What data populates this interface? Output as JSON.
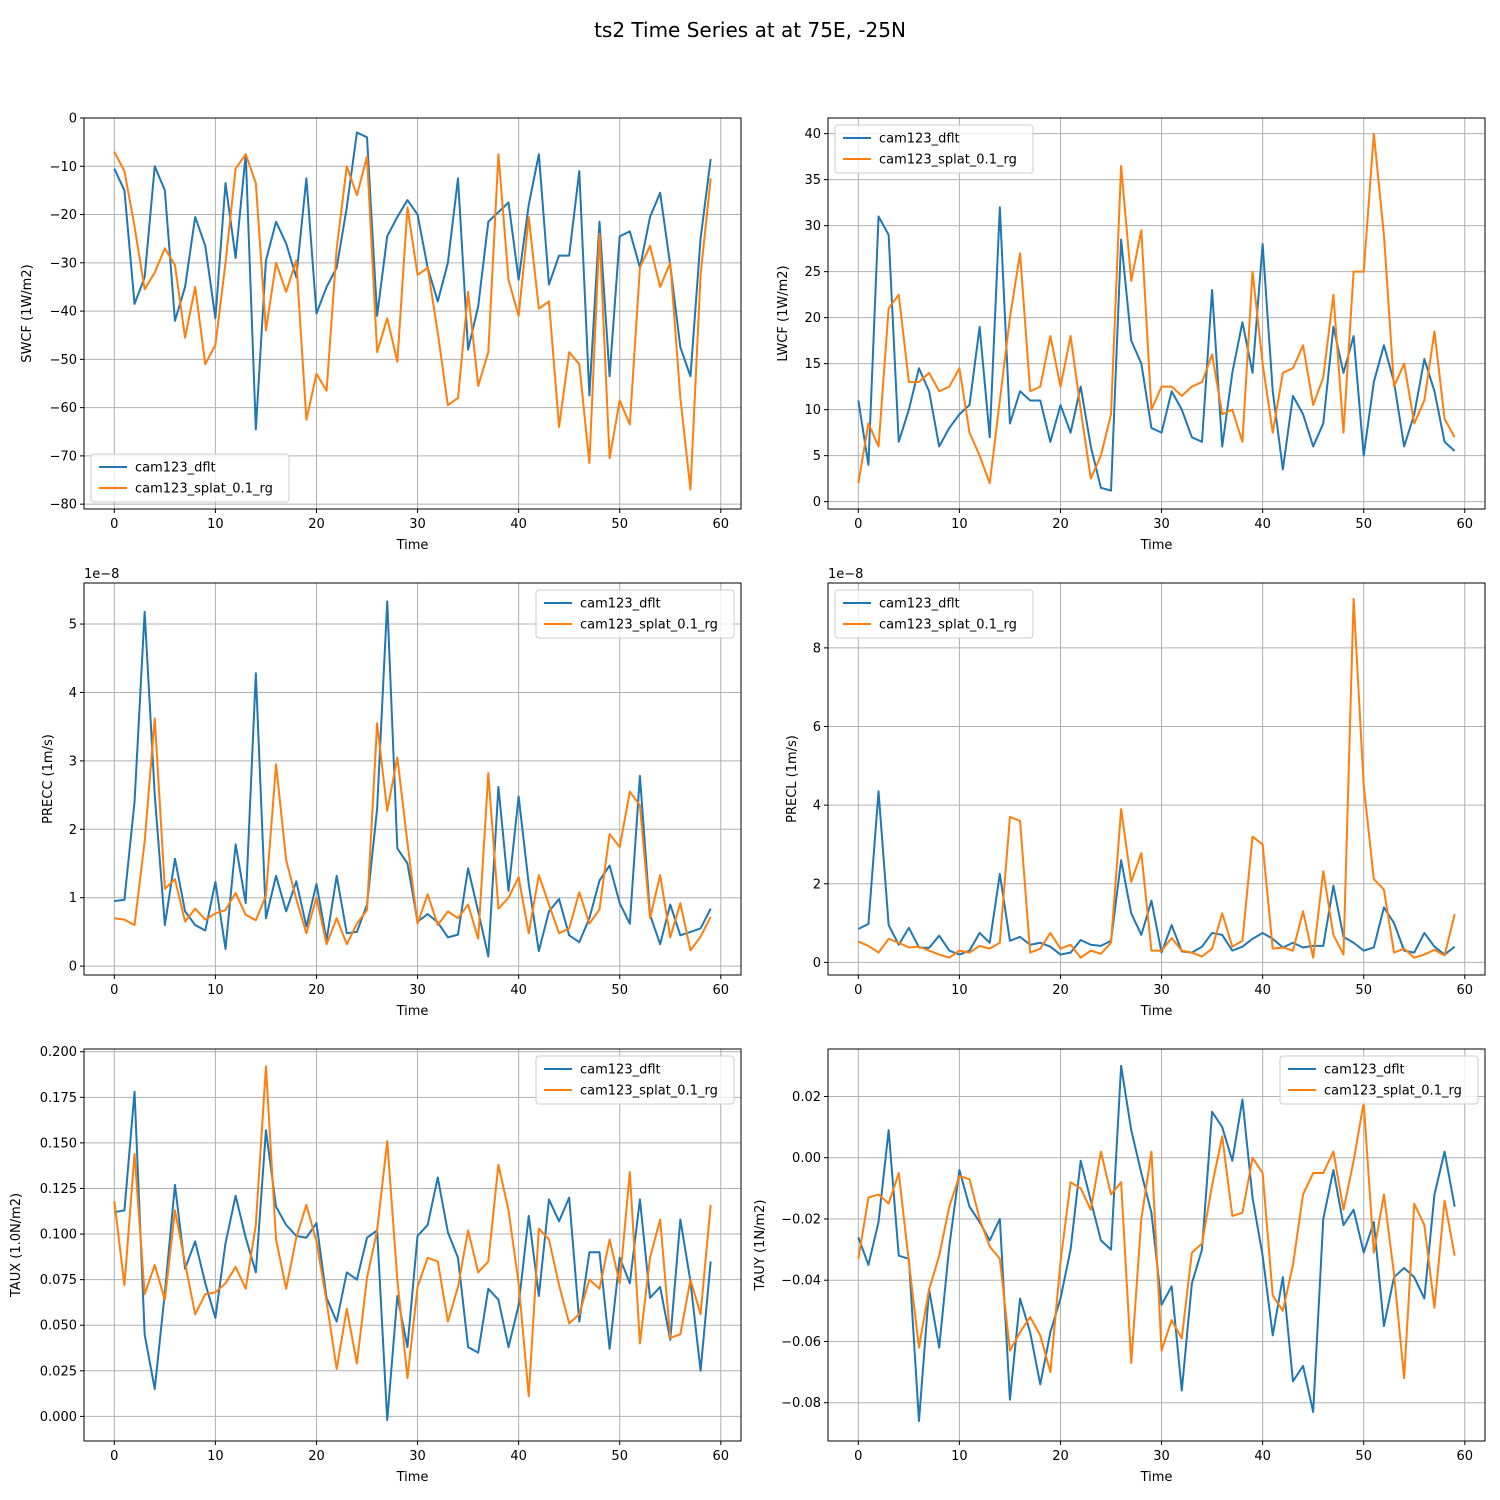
{
  "figure": {
    "title": "ts2 Time Series at at 75E, -25N"
  },
  "colors": {
    "cam123_dflt": "#1f77b4",
    "cam123_splat_0.1_rg": "#ff7f0e"
  },
  "chart_data": [
    {
      "type": "line",
      "xlabel": "Time",
      "ylabel": "SWCF (1W/m2)",
      "offset_label": "",
      "xlim": [
        -3,
        62
      ],
      "ylim": [
        -81,
        0
      ],
      "xticks": [
        0,
        10,
        20,
        30,
        40,
        50,
        60
      ],
      "yticks": [
        0,
        -10,
        -20,
        -30,
        -40,
        -50,
        -60,
        -70,
        -80
      ],
      "ytick_labels": [
        "0",
        "−10",
        "−20",
        "−30",
        "−40",
        "−50",
        "−60",
        "−70",
        "−80"
      ],
      "grid": true,
      "legend_loc": "lower-left",
      "series": [
        {
          "name": "cam123_dflt",
          "values": [
            -10.5,
            -15,
            -38.5,
            -33,
            -10,
            -15,
            -42,
            -35,
            -20.5,
            -26.5,
            -41.5,
            -13.5,
            -29,
            -7.5,
            -64.5,
            -29.5,
            -21.5,
            -26,
            -33,
            -12.5,
            -40.5,
            -35,
            -31,
            -18.5,
            -3,
            -4,
            -41,
            -24.5,
            -20.5,
            -17,
            -20,
            -31,
            -38,
            -30,
            -12.5,
            -48,
            -39,
            -21.5,
            -19.5,
            -17.5,
            -33.5,
            -18,
            -7.5,
            -34.5,
            -28.5,
            -28.5,
            -11,
            -57.5,
            -21.5,
            -53.5,
            -24.5,
            -23.5,
            -31,
            -20.5,
            -15.5,
            -30.5,
            -47.5,
            -53.5,
            -25,
            -8.5
          ]
        },
        {
          "name": "cam123_splat_0.1_rg",
          "values": [
            -7,
            -11,
            -22.5,
            -35.5,
            -32,
            -27,
            -30.5,
            -45.5,
            -35,
            -51,
            -47,
            -30,
            -10.5,
            -7.5,
            -13.5,
            -44,
            -30,
            -36,
            -29.5,
            -62.5,
            -53,
            -56.5,
            -27,
            -10,
            -16,
            -8,
            -48.5,
            -41.5,
            -50.5,
            -18.5,
            -32.5,
            -31,
            -44.5,
            -59.5,
            -58,
            -36,
            -55.5,
            -48.5,
            -7.5,
            -33.5,
            -41,
            -20.5,
            -39.5,
            -38,
            -64,
            -48.5,
            -51,
            -71.5,
            -24,
            -70.5,
            -58.5,
            -63.5,
            -31,
            -26.5,
            -35,
            -30,
            -58,
            -77,
            -32.5,
            -12.5
          ]
        }
      ]
    },
    {
      "type": "line",
      "xlabel": "Time",
      "ylabel": "LWCF (1W/m2)",
      "offset_label": "",
      "xlim": [
        -3,
        62
      ],
      "ylim": [
        -0.8,
        41.7
      ],
      "xticks": [
        0,
        10,
        20,
        30,
        40,
        50,
        60
      ],
      "yticks": [
        0,
        5,
        10,
        15,
        20,
        25,
        30,
        35,
        40
      ],
      "ytick_labels": [
        "0",
        "5",
        "10",
        "15",
        "20",
        "25",
        "30",
        "35",
        "40"
      ],
      "grid": true,
      "legend_loc": "upper-left",
      "series": [
        {
          "name": "cam123_dflt",
          "values": [
            11,
            4,
            31,
            29,
            6.5,
            10,
            14.5,
            12,
            6,
            8,
            9.5,
            10.5,
            19,
            7,
            32,
            8.5,
            12,
            11,
            11,
            6.5,
            10.5,
            7.5,
            12.5,
            6,
            1.5,
            1.2,
            28.5,
            17.5,
            15,
            8,
            7.5,
            12,
            10,
            7,
            6.5,
            23,
            6,
            14,
            19.5,
            14,
            28,
            12,
            3.5,
            11.5,
            9.5,
            6,
            8.5,
            19,
            14,
            18,
            5,
            13,
            17,
            13,
            6,
            9.5,
            15.5,
            12,
            6.5,
            5.5
          ]
        },
        {
          "name": "cam123_splat_0.1_rg",
          "values": [
            2,
            8.5,
            6,
            21,
            22.5,
            13,
            13,
            14,
            12,
            12.5,
            14.5,
            7.5,
            5,
            2,
            11,
            20,
            27,
            12,
            12.5,
            18,
            12.5,
            18,
            10,
            2.5,
            5,
            9.5,
            36.5,
            24,
            29.5,
            10,
            12.5,
            12.5,
            11.5,
            12.5,
            13,
            16,
            9.5,
            10,
            6.5,
            25,
            15,
            7.5,
            14,
            14.5,
            17,
            10.5,
            13.5,
            22.5,
            7.5,
            25,
            25,
            40,
            29,
            12.5,
            15,
            8.5,
            11,
            18.5,
            9,
            7
          ]
        }
      ]
    },
    {
      "type": "line",
      "xlabel": "Time",
      "ylabel": "PRECC (1m/s)",
      "offset_label": "1e−8",
      "xlim": [
        -3,
        62
      ],
      "ylim": [
        -0.13,
        5.6
      ],
      "xticks": [
        0,
        10,
        20,
        30,
        40,
        50,
        60
      ],
      "yticks": [
        0,
        1,
        2,
        3,
        4,
        5
      ],
      "ytick_labels": [
        "0",
        "1",
        "2",
        "3",
        "4",
        "5"
      ],
      "grid": true,
      "legend_loc": "upper-right",
      "series": [
        {
          "name": "cam123_dflt",
          "values": [
            0.95,
            0.97,
            2.4,
            5.18,
            2.5,
            0.6,
            1.57,
            0.8,
            0.6,
            0.52,
            1.23,
            0.25,
            1.78,
            0.92,
            4.28,
            0.7,
            1.32,
            0.8,
            1.24,
            0.58,
            1.2,
            0.38,
            1.32,
            0.48,
            0.5,
            0.9,
            2.3,
            5.33,
            1.72,
            1.5,
            0.65,
            0.76,
            0.64,
            0.42,
            0.46,
            1.43,
            0.8,
            0.14,
            2.62,
            1.1,
            2.48,
            1.2,
            0.22,
            0.8,
            0.98,
            0.45,
            0.35,
            0.7,
            1.25,
            1.47,
            0.92,
            0.62,
            2.78,
            0.75,
            0.32,
            0.9,
            0.45,
            0.5,
            0.55,
            0.84
          ]
        },
        {
          "name": "cam123_splat_0.1_rg",
          "values": [
            0.7,
            0.68,
            0.6,
            1.82,
            3.62,
            1.13,
            1.27,
            0.65,
            0.84,
            0.68,
            0.77,
            0.82,
            1.07,
            0.75,
            0.67,
            1.03,
            2.95,
            1.55,
            0.98,
            0.48,
            1.0,
            0.32,
            0.7,
            0.32,
            0.62,
            0.82,
            3.55,
            2.27,
            3.05,
            1.8,
            0.62,
            1.05,
            0.6,
            0.8,
            0.7,
            0.9,
            0.4,
            2.82,
            0.84,
            1.0,
            1.3,
            0.48,
            1.33,
            0.9,
            0.48,
            0.55,
            1.08,
            0.62,
            0.83,
            1.93,
            1.74,
            2.55,
            2.35,
            0.7,
            1.33,
            0.42,
            0.92,
            0.23,
            0.43,
            0.72
          ]
        }
      ]
    },
    {
      "type": "line",
      "xlabel": "Time",
      "ylabel": "PRECL (1m/s)",
      "offset_label": "1e−8",
      "xlim": [
        -3,
        62
      ],
      "ylim": [
        -0.32,
        9.65
      ],
      "xticks": [
        0,
        10,
        20,
        30,
        40,
        50,
        60
      ],
      "yticks": [
        0,
        2,
        4,
        6,
        8
      ],
      "ytick_labels": [
        "0",
        "2",
        "4",
        "6",
        "8"
      ],
      "grid": true,
      "legend_loc": "upper-left",
      "series": [
        {
          "name": "cam123_dflt",
          "values": [
            0.85,
            0.98,
            4.35,
            0.95,
            0.45,
            0.88,
            0.38,
            0.37,
            0.68,
            0.3,
            0.2,
            0.3,
            0.75,
            0.5,
            2.25,
            0.55,
            0.65,
            0.45,
            0.5,
            0.4,
            0.2,
            0.25,
            0.57,
            0.45,
            0.42,
            0.55,
            2.6,
            1.25,
            0.7,
            1.57,
            0.25,
            0.95,
            0.28,
            0.25,
            0.4,
            0.75,
            0.7,
            0.3,
            0.4,
            0.6,
            0.75,
            0.6,
            0.38,
            0.5,
            0.38,
            0.42,
            0.42,
            1.95,
            0.65,
            0.5,
            0.3,
            0.38,
            1.4,
            1.0,
            0.3,
            0.25,
            0.75,
            0.4,
            0.2,
            0.4
          ]
        },
        {
          "name": "cam123_splat_0.1_rg",
          "values": [
            0.53,
            0.42,
            0.25,
            0.6,
            0.5,
            0.38,
            0.4,
            0.3,
            0.2,
            0.12,
            0.3,
            0.25,
            0.42,
            0.35,
            0.5,
            3.7,
            3.6,
            0.25,
            0.35,
            0.75,
            0.35,
            0.45,
            0.12,
            0.3,
            0.22,
            0.5,
            3.9,
            2.05,
            2.78,
            0.3,
            0.3,
            0.62,
            0.3,
            0.25,
            0.15,
            0.35,
            1.25,
            0.4,
            0.55,
            3.2,
            3.0,
            0.35,
            0.38,
            0.3,
            1.3,
            0.12,
            2.32,
            0.7,
            0.2,
            9.25,
            4.5,
            2.12,
            1.85,
            0.25,
            0.35,
            0.12,
            0.2,
            0.32,
            0.18,
            1.23
          ]
        }
      ]
    },
    {
      "type": "line",
      "xlabel": "Time",
      "ylabel": "TAUX (1.0N/m2)",
      "offset_label": "",
      "xlim": [
        -3,
        62
      ],
      "ylim": [
        -0.0135,
        0.2015
      ],
      "xticks": [
        0,
        10,
        20,
        30,
        40,
        50,
        60
      ],
      "yticks": [
        0.0,
        0.025,
        0.05,
        0.075,
        0.1,
        0.125,
        0.15,
        0.175,
        0.2
      ],
      "ytick_labels": [
        "0.000",
        "0.025",
        "0.050",
        "0.075",
        "0.100",
        "0.125",
        "0.150",
        "0.175",
        "0.200"
      ],
      "grid": true,
      "legend_loc": "upper-right",
      "series": [
        {
          "name": "cam123_dflt",
          "values": [
            0.112,
            0.113,
            0.178,
            0.045,
            0.015,
            0.068,
            0.127,
            0.081,
            0.096,
            0.073,
            0.054,
            0.095,
            0.121,
            0.098,
            0.079,
            0.157,
            0.115,
            0.105,
            0.099,
            0.098,
            0.106,
            0.065,
            0.052,
            0.079,
            0.075,
            0.098,
            0.102,
            -0.002,
            0.066,
            0.038,
            0.099,
            0.105,
            0.131,
            0.101,
            0.087,
            0.038,
            0.035,
            0.07,
            0.064,
            0.038,
            0.061,
            0.11,
            0.066,
            0.119,
            0.107,
            0.12,
            0.052,
            0.09,
            0.09,
            0.037,
            0.087,
            0.073,
            0.119,
            0.065,
            0.071,
            0.042,
            0.108,
            0.074,
            0.025,
            0.085
          ]
        },
        {
          "name": "cam123_splat_0.1_rg",
          "values": [
            0.118,
            0.072,
            0.144,
            0.067,
            0.083,
            0.064,
            0.113,
            0.084,
            0.056,
            0.067,
            0.068,
            0.073,
            0.082,
            0.07,
            0.105,
            0.192,
            0.097,
            0.07,
            0.098,
            0.116,
            0.096,
            0.063,
            0.026,
            0.059,
            0.029,
            0.076,
            0.102,
            0.151,
            0.075,
            0.021,
            0.071,
            0.087,
            0.085,
            0.052,
            0.071,
            0.102,
            0.079,
            0.085,
            0.138,
            0.113,
            0.073,
            0.011,
            0.103,
            0.097,
            0.072,
            0.051,
            0.056,
            0.075,
            0.07,
            0.097,
            0.073,
            0.134,
            0.04,
            0.087,
            0.108,
            0.043,
            0.045,
            0.075,
            0.056,
            0.116
          ]
        }
      ]
    },
    {
      "type": "line",
      "xlabel": "Time",
      "ylabel": "TAUY (1N/m2)",
      "offset_label": "",
      "xlim": [
        -3,
        62
      ],
      "ylim": [
        -0.0925,
        0.0355
      ],
      "xticks": [
        0,
        10,
        20,
        30,
        40,
        50,
        60
      ],
      "yticks": [
        -0.08,
        -0.06,
        -0.04,
        -0.02,
        0.0,
        0.02
      ],
      "ytick_labels": [
        "−0.08",
        "−0.06",
        "−0.04",
        "−0.02",
        "0.00",
        "0.02"
      ],
      "grid": true,
      "legend_loc": "upper-right",
      "series": [
        {
          "name": "cam123_dflt",
          "values": [
            -0.026,
            -0.035,
            -0.021,
            0.009,
            -0.032,
            -0.033,
            -0.086,
            -0.043,
            -0.062,
            -0.029,
            -0.004,
            -0.016,
            -0.021,
            -0.027,
            -0.02,
            -0.079,
            -0.046,
            -0.057,
            -0.074,
            -0.057,
            -0.046,
            -0.03,
            -0.001,
            -0.014,
            -0.027,
            -0.03,
            0.03,
            0.009,
            -0.005,
            -0.018,
            -0.048,
            -0.042,
            -0.076,
            -0.041,
            -0.03,
            0.015,
            0.01,
            -0.001,
            0.019,
            -0.013,
            -0.032,
            -0.058,
            -0.039,
            -0.073,
            -0.068,
            -0.083,
            -0.02,
            -0.004,
            -0.022,
            -0.017,
            -0.031,
            -0.021,
            -0.055,
            -0.039,
            -0.036,
            -0.039,
            -0.046,
            -0.012,
            0.002,
            -0.016
          ]
        },
        {
          "name": "cam123_splat_0.1_rg",
          "values": [
            -0.033,
            -0.013,
            -0.012,
            -0.015,
            -0.005,
            -0.034,
            -0.062,
            -0.043,
            -0.032,
            -0.016,
            -0.006,
            -0.007,
            -0.02,
            -0.029,
            -0.033,
            -0.063,
            -0.057,
            -0.052,
            -0.058,
            -0.07,
            -0.034,
            -0.008,
            -0.01,
            -0.017,
            0.002,
            -0.012,
            -0.008,
            -0.067,
            -0.02,
            0.002,
            -0.063,
            -0.053,
            -0.059,
            -0.031,
            -0.028,
            -0.009,
            0.007,
            -0.019,
            -0.018,
            0.0,
            -0.005,
            -0.045,
            -0.05,
            -0.035,
            -0.012,
            -0.005,
            -0.005,
            0.002,
            -0.017,
            -0.001,
            0.018,
            -0.031,
            -0.012,
            -0.038,
            -0.072,
            -0.015,
            -0.022,
            -0.049,
            -0.014,
            -0.032
          ]
        }
      ]
    }
  ]
}
